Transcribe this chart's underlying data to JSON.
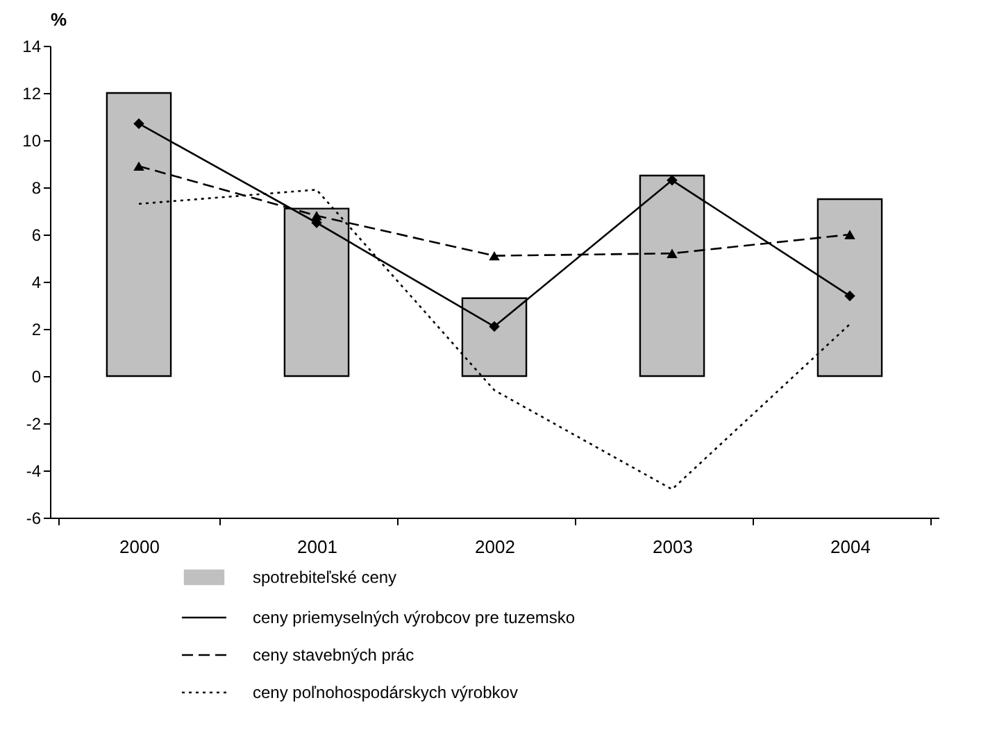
{
  "chart_data": {
    "type": "bar",
    "ylabel": "%",
    "categories": [
      "2000",
      "2001",
      "2002",
      "2003",
      "2004"
    ],
    "ylim": [
      -6,
      14
    ],
    "yticks": [
      -6,
      -4,
      -2,
      0,
      2,
      4,
      6,
      8,
      10,
      12,
      14
    ],
    "grid": false,
    "legend": "bottom",
    "series": [
      {
        "name": "spotrebiteľské ceny",
        "color": "#c0c0c0",
        "values": [
          12.0,
          7.1,
          3.3,
          8.5,
          7.5
        ]
      },
      {
        "name": "ceny priemyselných výrobcov pre tuzemsko",
        "type": "line",
        "color": "#000000",
        "marker": "diamond",
        "line_style": "solid",
        "values": [
          10.7,
          6.5,
          2.1,
          8.3,
          3.4
        ]
      },
      {
        "name": "ceny stavebných prác",
        "type": "line",
        "color": "#000000",
        "marker": "triangle",
        "line_style": "dashed",
        "values": [
          8.9,
          6.8,
          5.1,
          5.2,
          6.0
        ]
      },
      {
        "name": "ceny poľnohospodárskych výrobkov",
        "type": "line",
        "color": "#000000",
        "marker": "none",
        "line_style": "dotted",
        "values": [
          7.3,
          7.9,
          -0.6,
          -4.8,
          2.2
        ]
      }
    ]
  }
}
